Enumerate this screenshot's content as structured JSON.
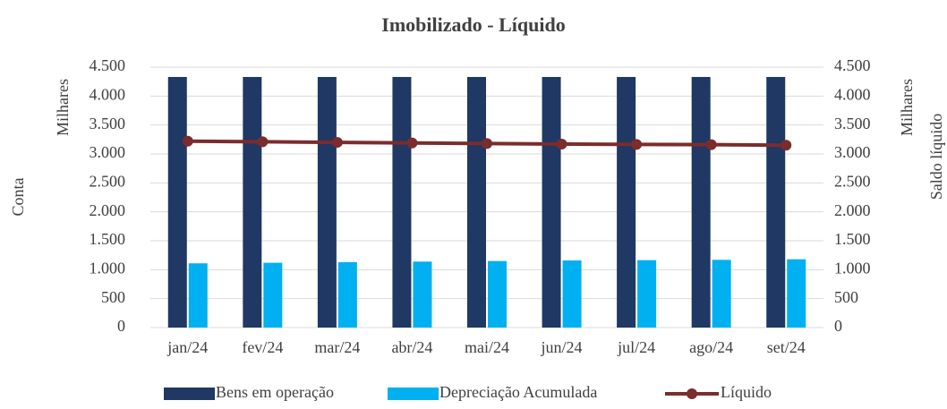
{
  "chart_data": {
    "type": "bar",
    "title": "Imobilizado - Líquido",
    "y_label": "Conta",
    "y_units": "Milhares",
    "y2_label": "Saldo líquido",
    "y2_units": "Milhares",
    "categories": [
      "jan/24",
      "fev/24",
      "mar/24",
      "abr/24",
      "mai/24",
      "jun/24",
      "jul/24",
      "ago/24",
      "set/24"
    ],
    "series": [
      {
        "name": "Bens em operação",
        "color": "#1f3864",
        "values": [
          4330,
          4330,
          4330,
          4330,
          4330,
          4330,
          4330,
          4330,
          4330
        ]
      },
      {
        "name": "Depreciação Acumulada",
        "color": "#00b0f0",
        "values": [
          1110,
          1120,
          1130,
          1140,
          1150,
          1160,
          1165,
          1170,
          1180
        ]
      },
      {
        "name": "Líquido",
        "color": "#7b2c2c",
        "type": "line",
        "axis": "y2",
        "values": [
          3220,
          3210,
          3200,
          3190,
          3180,
          3170,
          3165,
          3160,
          3150
        ]
      }
    ],
    "ylim": [
      0,
      4500
    ],
    "yticks": [
      0,
      {
        "value": 500,
        "label": "500"
      },
      {
        "value": 1000,
        "label": "1.000"
      },
      {
        "value": 1500,
        "label": "1.500"
      },
      {
        "value": 2000,
        "label": "2.000"
      },
      {
        "value": 2500,
        "label": "2.500"
      },
      {
        "value": 3000,
        "label": "3.000"
      },
      {
        "value": 3500,
        "label": "3.500"
      },
      {
        "value": 4000,
        "label": "4.000"
      },
      {
        "value": 4500,
        "label": "4.500"
      }
    ],
    "y2lim": [
      0,
      4500
    ],
    "y2ticks": [
      0,
      {
        "value": 500,
        "label": "500"
      },
      {
        "value": 1000,
        "label": "1.000"
      },
      {
        "value": 1500,
        "label": "1.500"
      },
      {
        "value": 2000,
        "label": "2.000"
      },
      {
        "value": 2500,
        "label": "2.500"
      },
      {
        "value": 3000,
        "label": "3.000"
      },
      {
        "value": 3500,
        "label": "3.500"
      },
      {
        "value": 4000,
        "label": "4.000"
      },
      {
        "value": 4500,
        "label": "4.500"
      }
    ],
    "grid": true,
    "legend": "bottom"
  }
}
